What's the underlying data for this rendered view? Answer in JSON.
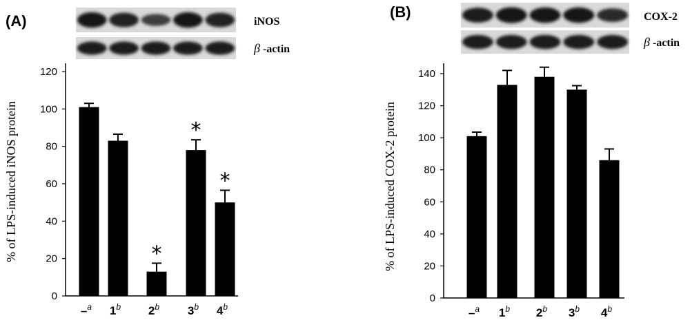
{
  "chart_data": [
    {
      "type": "bar",
      "panel_label": "(A)",
      "categories": [
        {
          "main": "–",
          "sup": "a"
        },
        {
          "main": "1",
          "sup": "b"
        },
        {
          "main": "2",
          "sup": "b"
        },
        {
          "main": "3",
          "sup": "b"
        },
        {
          "main": "4",
          "sup": "b"
        }
      ],
      "values": [
        101,
        83,
        13,
        78,
        50
      ],
      "errors": [
        2,
        3.5,
        4.5,
        5.5,
        6.5
      ],
      "significance": [
        "",
        "",
        "*",
        "*",
        "*"
      ],
      "ylabel": "% of LPS-induced iNOS protein",
      "ylim": [
        0,
        120
      ],
      "yticks": [
        0,
        20,
        40,
        60,
        80,
        100,
        120
      ],
      "blot_labels": [
        {
          "pre": "",
          "text": "iNOS"
        },
        {
          "pre": "β",
          "text": " -actin"
        }
      ],
      "blot_intensity": [
        [
          0.95,
          0.85,
          0.55,
          0.95,
          0.85
        ],
        [
          0.9,
          0.9,
          0.9,
          0.9,
          0.9
        ]
      ]
    },
    {
      "type": "bar",
      "panel_label": "(B)",
      "categories": [
        {
          "main": "–",
          "sup": "a"
        },
        {
          "main": "1",
          "sup": "b"
        },
        {
          "main": "2",
          "sup": "b"
        },
        {
          "main": "3",
          "sup": "b"
        },
        {
          "main": "4",
          "sup": "b"
        }
      ],
      "values": [
        101,
        133,
        138,
        130,
        86
      ],
      "errors": [
        2.5,
        9,
        6,
        2.5,
        7
      ],
      "significance": [
        "",
        "",
        "",
        "",
        ""
      ],
      "ylabel": "% of LPS-induced COX-2 protein",
      "ylim": [
        0,
        150
      ],
      "yticks": [
        0,
        20,
        40,
        60,
        80,
        100,
        120,
        140
      ],
      "blot_labels": [
        {
          "pre": "",
          "text": "COX-2"
        },
        {
          "pre": "β",
          "text": " -actin"
        }
      ],
      "blot_intensity": [
        [
          0.9,
          1.0,
          0.95,
          0.95,
          0.75
        ],
        [
          0.9,
          0.9,
          0.9,
          0.9,
          0.9
        ]
      ]
    }
  ]
}
